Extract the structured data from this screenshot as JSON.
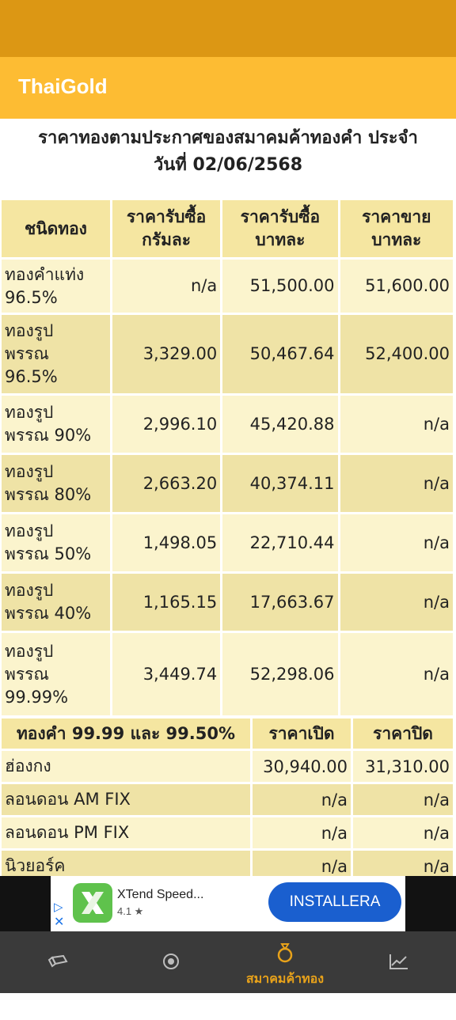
{
  "app": {
    "title": "ThaiGold"
  },
  "heading": {
    "line1": "ราคาทองตามประกาศของสมาคมค้าทองคำ ประจำ",
    "line2": "วันที่ 02/06/2568"
  },
  "gold_table": {
    "headers": {
      "type": "ชนิดทอง",
      "buy_gram_1": "ราคารับซื้อ",
      "buy_gram_2": "กรัมละ",
      "buy_baht_1": "ราคารับซื้อ",
      "buy_baht_2": "บาทละ",
      "sell_baht_1": "ราคาขาย",
      "sell_baht_2": "บาทละ"
    },
    "rows": [
      {
        "name_1": "ทองคำแท่ง",
        "name_2": "96.5%",
        "name_3": "",
        "buy_gram": "n/a",
        "buy_baht": "51,500.00",
        "sell_baht": "51,600.00"
      },
      {
        "name_1": "ทองรูป",
        "name_2": "พรรณ",
        "name_3": "96.5%",
        "buy_gram": "3,329.00",
        "buy_baht": "50,467.64",
        "sell_baht": "52,400.00"
      },
      {
        "name_1": "ทองรูป",
        "name_2": "พรรณ 90%",
        "name_3": "",
        "buy_gram": "2,996.10",
        "buy_baht": "45,420.88",
        "sell_baht": "n/a"
      },
      {
        "name_1": "ทองรูป",
        "name_2": "พรรณ 80%",
        "name_3": "",
        "buy_gram": "2,663.20",
        "buy_baht": "40,374.11",
        "sell_baht": "n/a"
      },
      {
        "name_1": "ทองรูป",
        "name_2": "พรรณ 50%",
        "name_3": "",
        "buy_gram": "1,498.05",
        "buy_baht": "22,710.44",
        "sell_baht": "n/a"
      },
      {
        "name_1": "ทองรูป",
        "name_2": "พรรณ 40%",
        "name_3": "",
        "buy_gram": "1,165.15",
        "buy_baht": "17,663.67",
        "sell_baht": "n/a"
      },
      {
        "name_1": "ทองรูป",
        "name_2": "พรรณ",
        "name_3": "99.99%",
        "buy_gram": "3,449.74",
        "buy_baht": "52,298.06",
        "sell_baht": "n/a"
      }
    ]
  },
  "market_table": {
    "headers": {
      "name": "ทองคำ 99.99 และ 99.50%",
      "open": "ราคาเปิด",
      "close": "ราคาปิด"
    },
    "rows": [
      {
        "name": "ฮ่องกง",
        "open": "30,940.00",
        "close": "31,310.00"
      },
      {
        "name": "ลอนดอน AM FIX",
        "open": "n/a",
        "close": "n/a"
      },
      {
        "name": "ลอนดอน PM FIX",
        "open": "n/a",
        "close": "n/a"
      },
      {
        "name": "นิวยอร์ค",
        "open": "n/a",
        "close": "n/a"
      }
    ]
  },
  "ad": {
    "app_name": "XTend Speed...",
    "rating": "4.1 ★",
    "install_label": "INSTALLERA"
  },
  "nav": {
    "active_label": "สมาคมค้าทอง",
    "active_color": "#e8a21a",
    "icons": [
      "gold-bar-icon",
      "target-icon",
      "ring-icon",
      "trend-chart-icon"
    ]
  },
  "colors": {
    "status_bar": "#dc9714",
    "app_bar": "#fdbc33",
    "header_cell": "#f5e6a1",
    "row_light": "#fbf4cd",
    "row_dark": "#efe3a6",
    "nav_bg": "#3a3a3a",
    "install_button": "#1a5fcf"
  }
}
